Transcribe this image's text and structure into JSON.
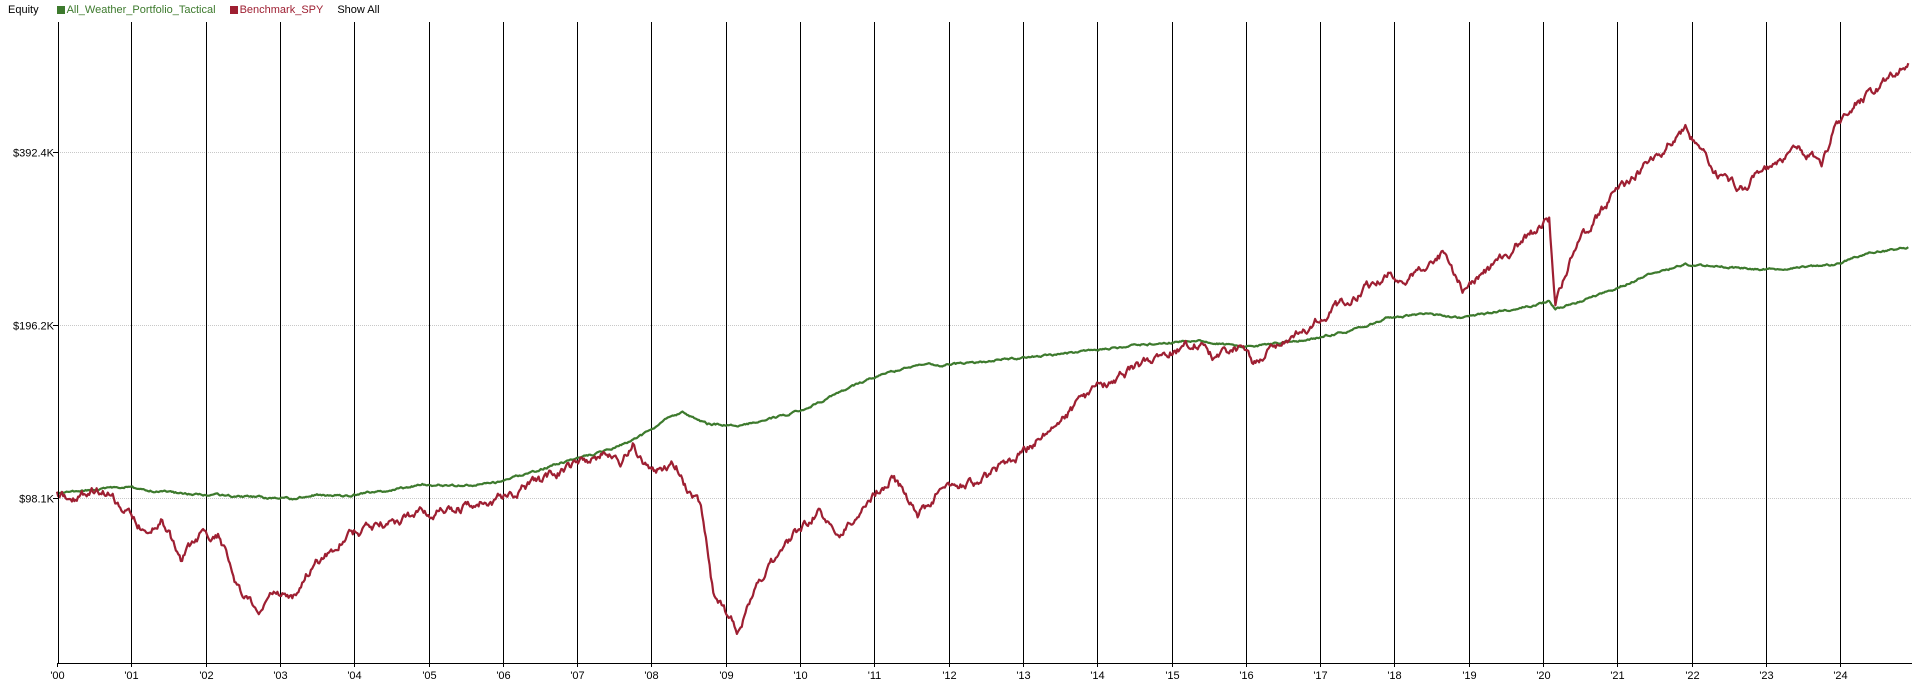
{
  "legend": {
    "title": "Equity",
    "show_all": "Show All"
  },
  "chart_data": {
    "type": "line",
    "title": "Equity",
    "xlabel": "",
    "ylabel": "",
    "y_scale": "log",
    "x_range": [
      "2000-01",
      "2024-12"
    ],
    "x_ticks": [
      "'00",
      "'01",
      "'02",
      "'03",
      "'04",
      "'05",
      "'06",
      "'07",
      "'08",
      "'09",
      "'10",
      "'11",
      "'12",
      "'13",
      "'14",
      "'15",
      "'16",
      "'17",
      "'18",
      "'19",
      "'20",
      "'21",
      "'22",
      "'23",
      "'24"
    ],
    "y_ticks": [
      {
        "value": 98100,
        "label": "$98.1K"
      },
      {
        "value": 196200,
        "label": "$196.2K"
      },
      {
        "value": 392400,
        "label": "$392.4K"
      }
    ],
    "grid": true,
    "legend_position": "top-left",
    "series": [
      {
        "name": "All_Weather_Portfolio_Tactical",
        "color": "#3d7a2d",
        "points": [
          [
            "2000-01",
            100000
          ],
          [
            "2000-06",
            101000
          ],
          [
            "2000-12",
            102500
          ],
          [
            "2001-06",
            100500
          ],
          [
            "2001-12",
            99500
          ],
          [
            "2002-06",
            98800
          ],
          [
            "2002-12",
            98000
          ],
          [
            "2003-03",
            97800
          ],
          [
            "2003-06",
            99500
          ],
          [
            "2003-12",
            99000
          ],
          [
            "2004-06",
            101000
          ],
          [
            "2004-12",
            103500
          ],
          [
            "2005-06",
            103000
          ],
          [
            "2005-12",
            104500
          ],
          [
            "2006-06",
            109000
          ],
          [
            "2006-12",
            114500
          ],
          [
            "2007-06",
            118500
          ],
          [
            "2007-12",
            127000
          ],
          [
            "2008-03",
            134000
          ],
          [
            "2008-06",
            138000
          ],
          [
            "2008-10",
            132000
          ],
          [
            "2009-03",
            131500
          ],
          [
            "2009-06",
            133000
          ],
          [
            "2009-12",
            138000
          ],
          [
            "2010-06",
            147000
          ],
          [
            "2010-12",
            158000
          ],
          [
            "2011-06",
            165000
          ],
          [
            "2011-09",
            168000
          ],
          [
            "2011-12",
            167000
          ],
          [
            "2012-06",
            169000
          ],
          [
            "2012-12",
            172000
          ],
          [
            "2013-06",
            174000
          ],
          [
            "2013-12",
            177000
          ],
          [
            "2014-06",
            180500
          ],
          [
            "2014-12",
            182500
          ],
          [
            "2015-06",
            184500
          ],
          [
            "2015-12",
            180000
          ],
          [
            "2016-06",
            182000
          ],
          [
            "2016-12",
            186000
          ],
          [
            "2017-06",
            192000
          ],
          [
            "2017-12",
            202000
          ],
          [
            "2018-06",
            205000
          ],
          [
            "2018-12",
            202000
          ],
          [
            "2019-06",
            207000
          ],
          [
            "2019-12",
            213000
          ],
          [
            "2020-02",
            216000
          ],
          [
            "2020-03",
            209000
          ],
          [
            "2020-06",
            214000
          ],
          [
            "2020-12",
            225000
          ],
          [
            "2021-06",
            240000
          ],
          [
            "2021-12",
            250000
          ],
          [
            "2022-06",
            248000
          ],
          [
            "2022-12",
            245000
          ],
          [
            "2023-06",
            246000
          ],
          [
            "2023-12",
            250000
          ],
          [
            "2024-06",
            262000
          ],
          [
            "2024-12",
            268000
          ]
        ]
      },
      {
        "name": "Benchmark_SPY",
        "color": "#9e1f32",
        "points": [
          [
            "2000-01",
            100000
          ],
          [
            "2000-03",
            97000
          ],
          [
            "2000-06",
            100500
          ],
          [
            "2000-09",
            101000
          ],
          [
            "2000-12",
            93500
          ],
          [
            "2001-03",
            86000
          ],
          [
            "2001-06",
            90000
          ],
          [
            "2001-09",
            77000
          ],
          [
            "2001-12",
            84000
          ],
          [
            "2002-03",
            85000
          ],
          [
            "2002-07",
            65000
          ],
          [
            "2002-10",
            62500
          ],
          [
            "2002-12",
            68000
          ],
          [
            "2003-03",
            64500
          ],
          [
            "2003-06",
            74000
          ],
          [
            "2003-12",
            85000
          ],
          [
            "2004-06",
            88500
          ],
          [
            "2004-12",
            92500
          ],
          [
            "2005-06",
            94000
          ],
          [
            "2005-12",
            97500
          ],
          [
            "2006-06",
            103500
          ],
          [
            "2006-12",
            110500
          ],
          [
            "2007-06",
            118000
          ],
          [
            "2007-08",
            112000
          ],
          [
            "2007-10",
            121000
          ],
          [
            "2008-01",
            108500
          ],
          [
            "2008-05",
            112000
          ],
          [
            "2008-07",
            100500
          ],
          [
            "2008-09",
            95000
          ],
          [
            "2008-11",
            67000
          ],
          [
            "2009-03",
            57500
          ],
          [
            "2009-06",
            70000
          ],
          [
            "2009-12",
            84000
          ],
          [
            "2010-04",
            93000
          ],
          [
            "2010-07",
            84000
          ],
          [
            "2010-12",
            97500
          ],
          [
            "2011-04",
            107000
          ],
          [
            "2011-08",
            91500
          ],
          [
            "2011-12",
            101500
          ],
          [
            "2012-06",
            105000
          ],
          [
            "2012-12",
            115000
          ],
          [
            "2013-06",
            131000
          ],
          [
            "2013-12",
            150000
          ],
          [
            "2014-06",
            162000
          ],
          [
            "2014-12",
            176000
          ],
          [
            "2015-06",
            183000
          ],
          [
            "2015-08",
            170000
          ],
          [
            "2015-12",
            180000
          ],
          [
            "2016-02",
            168000
          ],
          [
            "2016-06",
            178000
          ],
          [
            "2016-12",
            197000
          ],
          [
            "2017-06",
            218000
          ],
          [
            "2017-12",
            242000
          ],
          [
            "2018-02",
            232000
          ],
          [
            "2018-09",
            262000
          ],
          [
            "2018-12",
            225000
          ],
          [
            "2019-06",
            256000
          ],
          [
            "2019-12",
            289000
          ],
          [
            "2020-02",
            300000
          ],
          [
            "2020-03",
            212000
          ],
          [
            "2020-06",
            263000
          ],
          [
            "2020-12",
            327000
          ],
          [
            "2021-06",
            375000
          ],
          [
            "2021-12",
            430000
          ],
          [
            "2022-06",
            350000
          ],
          [
            "2022-10",
            340000
          ],
          [
            "2022-12",
            365000
          ],
          [
            "2023-06",
            398000
          ],
          [
            "2023-10",
            375000
          ],
          [
            "2023-12",
            430000
          ],
          [
            "2024-03",
            475000
          ],
          [
            "2024-07",
            505000
          ],
          [
            "2024-12",
            560000
          ]
        ]
      }
    ]
  }
}
